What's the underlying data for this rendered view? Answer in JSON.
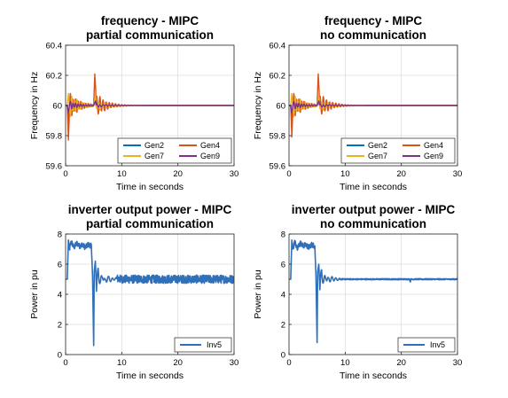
{
  "chart_data": [
    {
      "type": "line",
      "title": [
        "frequency - MIPC",
        "partial communication"
      ],
      "xlabel": "Time in seconds",
      "ylabel": "Frequency in Hz",
      "xlim": [
        0,
        30
      ],
      "ylim": [
        59.6,
        60.4
      ],
      "xticks": [
        "0",
        "10",
        "20",
        "30"
      ],
      "yticks": [
        "59.6",
        "59.8",
        "60",
        "60.2",
        "60.4"
      ],
      "grid": true,
      "legend": "bottom-right",
      "legend_columns": 2,
      "disturbance_times": [
        0.3,
        5.0
      ],
      "series": [
        {
          "name": "Gen2",
          "color": "#0072BD",
          "x": [
            0,
            0.3,
            0.5,
            0.8,
            1.2,
            1.6,
            2.0,
            2.5,
            3.0,
            4.0,
            5.0,
            5.3,
            6.0,
            7.0,
            8.0,
            10.0,
            15.0,
            20.0,
            30.0
          ],
          "y": [
            60.0,
            60.0,
            59.88,
            60.06,
            59.95,
            60.04,
            59.97,
            60.03,
            59.98,
            60.01,
            60.0,
            60.05,
            59.97,
            60.02,
            59.99,
            60.0,
            60.0,
            60.0,
            60.0
          ]
        },
        {
          "name": "Gen4",
          "color": "#D95319",
          "x": [
            0,
            0.3,
            0.5,
            0.8,
            1.2,
            1.6,
            2.0,
            2.5,
            3.0,
            4.0,
            5.0,
            5.2,
            5.6,
            6.0,
            7.0,
            8.0,
            10.0,
            15.0,
            20.0,
            30.0
          ],
          "y": [
            60.0,
            60.0,
            59.77,
            60.08,
            59.92,
            60.05,
            59.96,
            60.03,
            59.98,
            60.01,
            60.0,
            60.21,
            59.94,
            60.05,
            59.98,
            60.01,
            60.0,
            60.0,
            60.0,
            60.0
          ]
        },
        {
          "name": "Gen7",
          "color": "#EDB120",
          "x": [
            0,
            0.3,
            0.5,
            0.8,
            1.2,
            1.6,
            2.0,
            2.5,
            3.0,
            4.0,
            5.0,
            5.3,
            6.0,
            7.0,
            8.0,
            10.0,
            15.0,
            20.0,
            30.0
          ],
          "y": [
            60.0,
            60.0,
            60.08,
            59.93,
            60.06,
            59.96,
            60.04,
            59.97,
            60.02,
            59.99,
            60.0,
            60.06,
            59.95,
            60.03,
            59.99,
            60.0,
            60.0,
            60.0,
            60.0
          ]
        },
        {
          "name": "Gen9",
          "color": "#7E2F8E",
          "x": [
            0,
            0.3,
            0.5,
            0.8,
            1.2,
            1.6,
            2.0,
            2.5,
            3.0,
            4.0,
            5.0,
            5.3,
            6.0,
            7.0,
            8.0,
            10.0,
            15.0,
            20.0,
            30.0
          ],
          "y": [
            60.0,
            60.0,
            59.95,
            60.03,
            59.98,
            60.02,
            59.99,
            60.01,
            60.0,
            60.0,
            60.0,
            60.03,
            59.98,
            60.01,
            60.0,
            60.0,
            60.0,
            60.0,
            60.0
          ]
        }
      ]
    },
    {
      "type": "line",
      "title": [
        "frequency - MIPC",
        "no communication"
      ],
      "xlabel": "Time in seconds",
      "ylabel": "Frequency in Hz",
      "xlim": [
        0,
        30
      ],
      "ylim": [
        59.6,
        60.4
      ],
      "xticks": [
        "0",
        "10",
        "20",
        "30"
      ],
      "yticks": [
        "59.6",
        "59.8",
        "60",
        "60.2",
        "60.4"
      ],
      "grid": true,
      "legend": "bottom-right",
      "legend_columns": 2,
      "disturbance_times": [
        0.3,
        5.0
      ],
      "series": [
        {
          "name": "Gen2",
          "color": "#0072BD",
          "x": [
            0,
            0.3,
            0.5,
            0.8,
            1.2,
            1.6,
            2.0,
            2.5,
            3.0,
            4.0,
            5.0,
            5.3,
            6.0,
            7.0,
            8.0,
            10.0,
            15.0,
            20.0,
            30.0
          ],
          "y": [
            60.0,
            60.0,
            59.88,
            60.06,
            59.95,
            60.04,
            59.97,
            60.03,
            59.98,
            60.01,
            60.0,
            60.05,
            59.97,
            60.02,
            59.99,
            60.0,
            60.0,
            60.0,
            60.0
          ]
        },
        {
          "name": "Gen4",
          "color": "#D95319",
          "x": [
            0,
            0.3,
            0.5,
            0.8,
            1.2,
            1.6,
            2.0,
            2.5,
            3.0,
            4.0,
            5.0,
            5.2,
            5.6,
            6.0,
            7.0,
            8.0,
            10.0,
            15.0,
            20.0,
            30.0
          ],
          "y": [
            60.0,
            60.0,
            59.79,
            60.08,
            59.92,
            60.05,
            59.96,
            60.03,
            59.98,
            60.01,
            60.0,
            60.21,
            59.94,
            60.05,
            59.98,
            60.01,
            60.0,
            60.0,
            60.0,
            60.0
          ]
        },
        {
          "name": "Gen7",
          "color": "#EDB120",
          "x": [
            0,
            0.3,
            0.5,
            0.8,
            1.2,
            1.6,
            2.0,
            2.5,
            3.0,
            4.0,
            5.0,
            5.3,
            6.0,
            7.0,
            8.0,
            10.0,
            15.0,
            20.0,
            30.0
          ],
          "y": [
            60.0,
            60.0,
            60.08,
            59.93,
            60.06,
            59.96,
            60.04,
            59.97,
            60.02,
            59.99,
            60.0,
            60.06,
            59.95,
            60.03,
            59.99,
            60.0,
            60.0,
            60.0,
            60.0
          ]
        },
        {
          "name": "Gen9",
          "color": "#7E2F8E",
          "x": [
            0,
            0.3,
            0.5,
            0.8,
            1.2,
            1.6,
            2.0,
            2.5,
            3.0,
            4.0,
            5.0,
            5.3,
            6.0,
            7.0,
            8.0,
            10.0,
            15.0,
            20.0,
            30.0
          ],
          "y": [
            60.0,
            60.0,
            59.95,
            60.03,
            59.98,
            60.02,
            59.99,
            60.01,
            60.0,
            60.0,
            60.0,
            60.03,
            59.98,
            60.01,
            60.0,
            60.0,
            60.0,
            60.0,
            60.0
          ]
        }
      ]
    },
    {
      "type": "line",
      "title": [
        "inverter output power - MIPC",
        "partial communication"
      ],
      "xlabel": "Time in seconds",
      "ylabel": "Power in pu",
      "xlim": [
        0,
        30
      ],
      "ylim": [
        0,
        8
      ],
      "xticks": [
        "0",
        "10",
        "20",
        "30"
      ],
      "yticks": [
        "0",
        "2",
        "4",
        "6",
        "8"
      ],
      "grid": true,
      "legend": "bottom-right",
      "legend_columns": 1,
      "series": [
        {
          "name": "Inv5",
          "color": "#3070B8",
          "x": [
            0,
            0.3,
            0.5,
            0.7,
            1.0,
            1.5,
            2.0,
            2.5,
            3.0,
            3.5,
            4.0,
            4.6,
            4.8,
            5.0,
            5.1,
            5.3,
            5.5,
            5.8,
            6.2,
            6.6,
            7.0,
            7.5,
            8.0,
            9.0,
            10.0,
            12.0,
            15.0,
            20.0,
            25.0,
            30.0
          ],
          "y": [
            5.0,
            5.0,
            7.6,
            7.0,
            7.5,
            7.1,
            7.4,
            7.2,
            7.3,
            7.1,
            7.3,
            7.2,
            5.2,
            0.6,
            5.5,
            6.2,
            4.2,
            5.6,
            4.7,
            5.3,
            4.8,
            5.1,
            4.95,
            5.05,
            5.0,
            5.0,
            5.0,
            5.0,
            5.0,
            5.0
          ]
        }
      ]
    },
    {
      "type": "line",
      "title": [
        "inverter output power - MIPC",
        "no communication"
      ],
      "xlabel": "Time in seconds",
      "ylabel": "Power in pu",
      "xlim": [
        0,
        30
      ],
      "ylim": [
        0,
        8
      ],
      "xticks": [
        "0",
        "10",
        "20",
        "30"
      ],
      "yticks": [
        "0",
        "2",
        "4",
        "6",
        "8"
      ],
      "grid": true,
      "legend": "bottom-right",
      "legend_columns": 1,
      "series": [
        {
          "name": "Inv5",
          "color": "#3070B8",
          "x": [
            0,
            0.3,
            0.5,
            0.7,
            1.0,
            1.5,
            2.0,
            2.5,
            3.0,
            3.5,
            4.0,
            4.6,
            4.8,
            5.0,
            5.1,
            5.3,
            5.5,
            5.8,
            6.2,
            6.6,
            7.0,
            7.5,
            8.0,
            9.0,
            10.0,
            12.0,
            15.0,
            20.0,
            21.5,
            21.6,
            21.7,
            25.0,
            30.0
          ],
          "y": [
            5.0,
            5.0,
            7.6,
            7.0,
            7.5,
            7.1,
            7.4,
            7.2,
            7.3,
            7.1,
            7.3,
            7.2,
            5.2,
            0.8,
            5.5,
            6.0,
            4.3,
            5.5,
            4.8,
            5.2,
            4.9,
            5.05,
            5.0,
            5.0,
            5.0,
            5.0,
            5.0,
            5.0,
            5.0,
            4.8,
            5.0,
            5.0,
            5.0
          ]
        }
      ]
    }
  ]
}
